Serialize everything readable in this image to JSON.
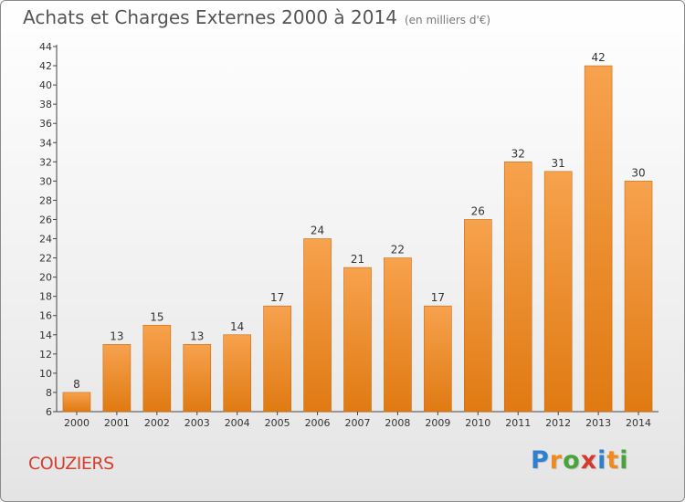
{
  "title": "Achats et Charges Externes 2000 à 2014",
  "subtitle": "(en milliers d'€)",
  "commune": "COUZIERS",
  "logo": {
    "text": "Proxiti",
    "letters": [
      {
        "ch": "P",
        "color": "#2f7fd1"
      },
      {
        "ch": "r",
        "color": "#f08a1c"
      },
      {
        "ch": "o",
        "color": "#4aa33a"
      },
      {
        "ch": "x",
        "color": "#d63a2f"
      },
      {
        "ch": "i",
        "color": "#2f7fd1"
      },
      {
        "ch": "t",
        "color": "#f08a1c"
      },
      {
        "ch": "i",
        "color": "#4aa33a"
      }
    ]
  },
  "colors": {
    "bar_top": "#f7a24e",
    "bar_bottom": "#e07a12",
    "bar_stroke": "#c96a10"
  },
  "chart_data": {
    "type": "bar",
    "title": "Achats et Charges Externes 2000 à 2014",
    "subtitle": "(en milliers d'€)",
    "categories": [
      "2000",
      "2001",
      "2002",
      "2003",
      "2004",
      "2005",
      "2006",
      "2007",
      "2008",
      "2009",
      "2010",
      "2011",
      "2012",
      "2013",
      "2014"
    ],
    "values": [
      8,
      13,
      15,
      13,
      14,
      17,
      24,
      21,
      22,
      17,
      26,
      32,
      31,
      42,
      30
    ],
    "ylim": [
      6,
      44
    ],
    "yticks": [
      6,
      8,
      10,
      12,
      14,
      16,
      18,
      20,
      22,
      24,
      26,
      28,
      30,
      32,
      34,
      36,
      38,
      40,
      42,
      44
    ],
    "grid": false,
    "legend": "none"
  }
}
